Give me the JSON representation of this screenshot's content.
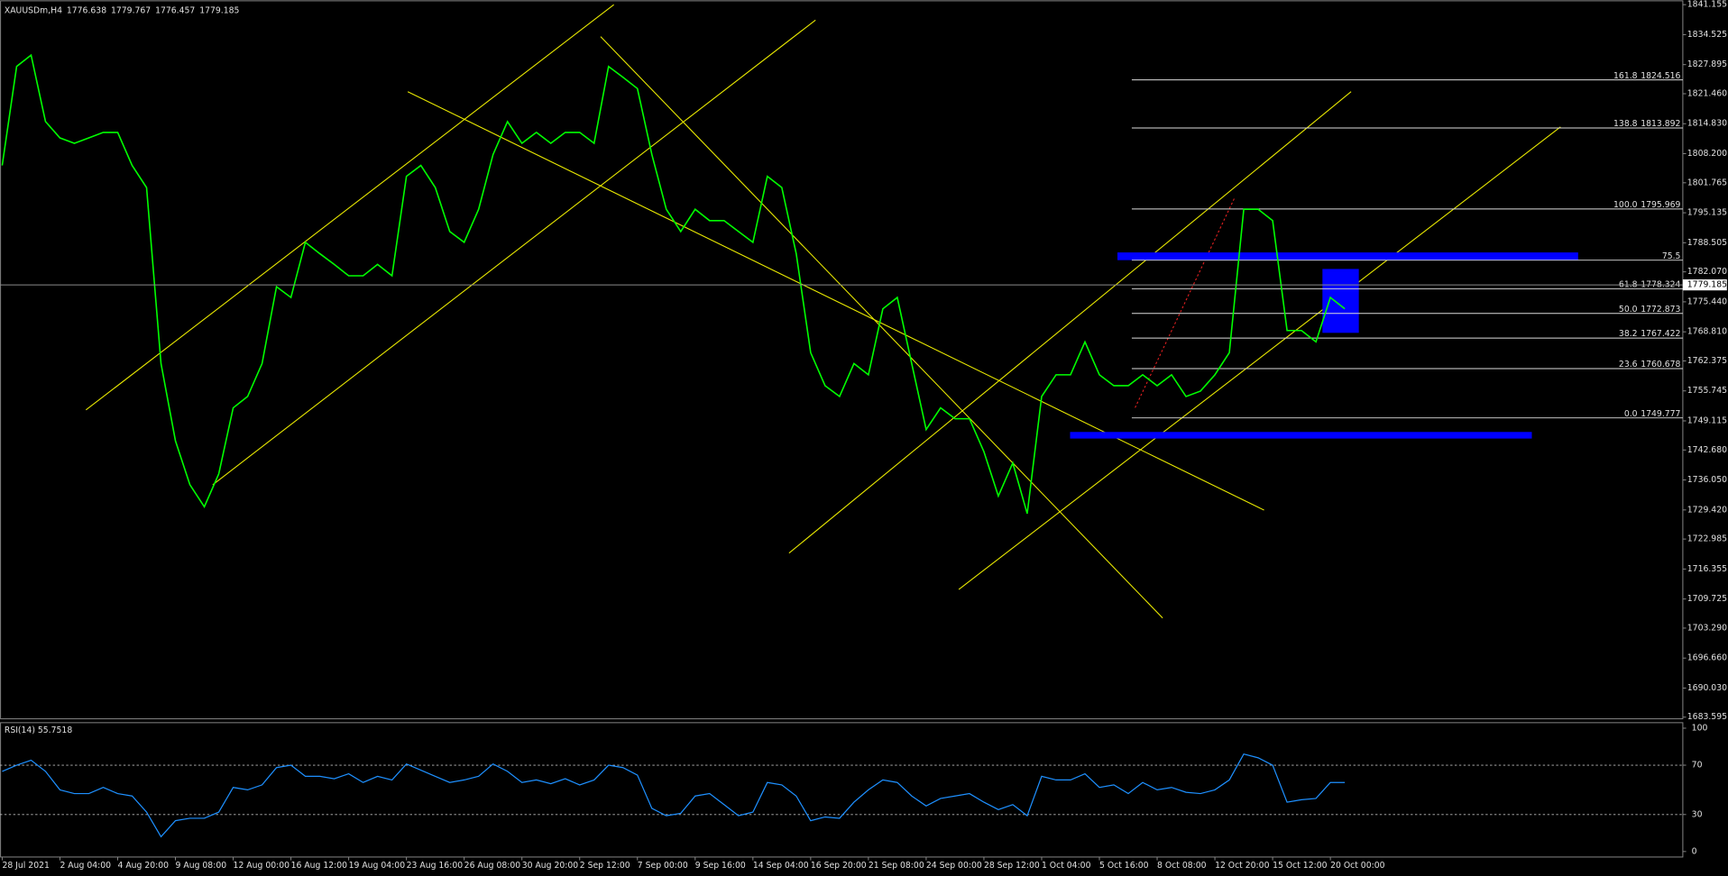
{
  "chart_data": {
    "type": "line",
    "symbol": "XAUUSDm,H4",
    "ohlc": [
      1776.638,
      1779.767,
      1776.457,
      1779.185
    ],
    "current_price": 1779.185,
    "color": "#00ff00",
    "xlim": [
      0,
      116
    ],
    "xticks": [
      {
        "value": 0,
        "label": "28 Jul 2021"
      },
      {
        "value": 4,
        "label": "2 Aug 04:00"
      },
      {
        "value": 8,
        "label": "4 Aug 20:00"
      },
      {
        "value": 12,
        "label": "9 Aug 08:00"
      },
      {
        "value": 16,
        "label": "12 Aug 00:00"
      },
      {
        "value": 20,
        "label": "16 Aug 12:00"
      },
      {
        "value": 24,
        "label": "19 Aug 04:00"
      },
      {
        "value": 28,
        "label": "23 Aug 16:00"
      },
      {
        "value": 32,
        "label": "26 Aug 08:00"
      },
      {
        "value": 36,
        "label": "30 Aug 20:00"
      },
      {
        "value": 40,
        "label": "2 Sep 12:00"
      },
      {
        "value": 44,
        "label": "7 Sep 00:00"
      },
      {
        "value": 48,
        "label": "9 Sep 16:00"
      },
      {
        "value": 52,
        "label": "14 Sep 04:00"
      },
      {
        "value": 56,
        "label": "16 Sep 20:00"
      },
      {
        "value": 60,
        "label": "21 Sep 08:00"
      },
      {
        "value": 64,
        "label": "24 Sep 00:00"
      },
      {
        "value": 68,
        "label": "28 Sep 12:00"
      },
      {
        "value": 72,
        "label": "1 Oct 04:00"
      },
      {
        "value": 76,
        "label": "5 Oct 16:00"
      },
      {
        "value": 80,
        "label": "8 Oct 08:00"
      },
      {
        "value": 84,
        "label": "12 Oct 20:00"
      },
      {
        "value": 88,
        "label": "15 Oct 12:00"
      },
      {
        "value": 92,
        "label": "20 Oct 00:00"
      }
    ],
    "ylim": [
      1683.595,
      1841.155
    ],
    "yticks": [
      1841.155,
      1834.525,
      1827.895,
      {
        "value": 1821.46,
        "label": "1821.460"
      },
      {
        "value": 1814.83,
        "label": "1814.830"
      },
      {
        "value": 1808.2,
        "label": "1808.200"
      },
      1801.765,
      1795.135,
      1788.505,
      {
        "value": 1782.07,
        "label": "1782.070"
      },
      {
        "value": 1775.44,
        "label": "1775.440"
      },
      {
        "value": 1768.81,
        "label": "1768.810"
      },
      1762.375,
      1755.745,
      1749.115,
      {
        "value": 1742.68,
        "label": "1742.680"
      },
      {
        "value": 1736.05,
        "label": "1736.050"
      },
      {
        "value": 1729.42,
        "label": "1729.420"
      },
      1722.985,
      1716.355,
      1709.725,
      {
        "value": 1703.29,
        "label": "1703.290"
      },
      {
        "value": 1696.66,
        "label": "1696.660"
      },
      {
        "value": 1690.03,
        "label": "1690.030"
      },
      1683.595
    ],
    "values": [
      1805.6,
      1827.5,
      1830.0,
      1815.3,
      1811.7,
      1810.5,
      1811.7,
      1812.9,
      1812.9,
      1805.6,
      1800.7,
      1761.8,
      1744.7,
      1735.0,
      1730.1,
      1737.4,
      1752.0,
      1754.5,
      1761.8,
      1778.8,
      1776.4,
      1788.6,
      1786.1,
      1783.7,
      1781.2,
      1781.2,
      1783.7,
      1781.2,
      1803.2,
      1805.6,
      1800.7,
      1791.0,
      1788.6,
      1795.9,
      1808.0,
      1815.3,
      1810.5,
      1812.9,
      1810.5,
      1812.9,
      1812.9,
      1810.5,
      1827.5,
      1825.1,
      1822.6,
      1808.0,
      1795.9,
      1791.0,
      1795.9,
      1793.4,
      1793.4,
      1791.0,
      1788.6,
      1803.2,
      1800.7,
      1786.1,
      1764.2,
      1756.9,
      1754.5,
      1761.8,
      1759.3,
      1773.9,
      1776.4,
      1761.8,
      1747.2,
      1752.0,
      1749.6,
      1749.6,
      1742.3,
      1732.5,
      1739.8,
      1728.6,
      1754.5,
      1759.3,
      1759.3,
      1766.6,
      1759.3,
      1756.9,
      1756.9,
      1759.3,
      1756.9,
      1759.3,
      1754.5,
      1755.7,
      1759.3,
      1764.2,
      1795.9,
      1795.9,
      1793.4,
      1769.1,
      1769.1,
      1766.6,
      1776.4,
      1773.9
    ],
    "fib_levels": [
      {
        "level": 161.8,
        "price": 1824.516
      },
      {
        "level": 138.8,
        "price": 1813.892
      },
      {
        "level": {
          "value": 100,
          "label": "100.0"
        },
        "price": 1795.969
      },
      {
        "level": 75.5
      },
      {
        "level": 61.8,
        "price": 1778.324
      },
      {
        "level": {
          "value": 50,
          "label": "50.0"
        },
        "price": 1772.873
      },
      {
        "level": 38.2,
        "price": 1767.422
      },
      {
        "level": 23.6,
        "price": 1760.678
      },
      {
        "level": {
          "value": 0,
          "label": "0.0"
        },
        "price": 1749.777
      }
    ],
    "rsi": {
      "title": "RSI(14) 55.7518",
      "color": "#1e90ff",
      "ylim": [
        0,
        100
      ],
      "yticks": [
        0,
        30,
        70,
        100
      ],
      "levels": [
        30,
        70
      ],
      "values": [
        65,
        70,
        74,
        65,
        50,
        47,
        47,
        52,
        47,
        45,
        32,
        12,
        25,
        27,
        27,
        32,
        52,
        50,
        54,
        68,
        70,
        61,
        61,
        59,
        63,
        56,
        61,
        58,
        71,
        66,
        61,
        56,
        58,
        61,
        71,
        65,
        56,
        58,
        55,
        59,
        54,
        58,
        70,
        68,
        62,
        35,
        29,
        31,
        45,
        47,
        38,
        29,
        32,
        56,
        54,
        45,
        25,
        28,
        27,
        40,
        50,
        58,
        56,
        45,
        37,
        43,
        45,
        47,
        40,
        34,
        38,
        29,
        61,
        58,
        58,
        63,
        52,
        54,
        47,
        56,
        50,
        52,
        48,
        47,
        50,
        58,
        79,
        76,
        70,
        40,
        42,
        43,
        56,
        56
      ]
    }
  }
}
